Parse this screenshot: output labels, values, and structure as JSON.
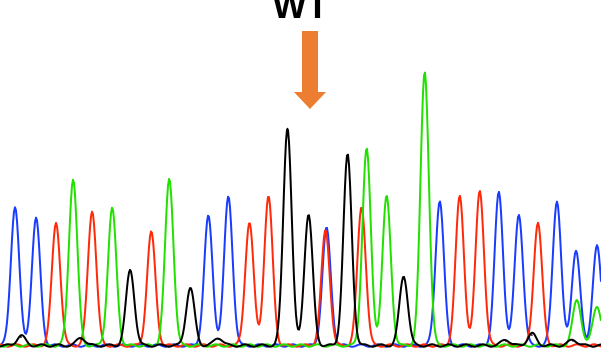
{
  "label": "WT",
  "arrow_color": "#ED7D31",
  "chart_data": {
    "type": "line",
    "title": "WT",
    "xlabel": "",
    "ylabel": "",
    "grid": false,
    "legend": "none",
    "xlim": [
      0,
      600
    ],
    "ylim": [
      0,
      280
    ],
    "series": [
      {
        "color": "#1a3cff",
        "peaks": [
          [
            15,
            140
          ],
          [
            36,
            128
          ],
          [
            208,
            130
          ],
          [
            228,
            150
          ],
          [
            326,
            118
          ],
          [
            439,
            146
          ],
          [
            498,
            154
          ],
          [
            518,
            132
          ],
          [
            556,
            146
          ],
          [
            575,
            96
          ],
          [
            596,
            100
          ]
        ]
      },
      {
        "color": "#ff2a0a",
        "peaks": [
          [
            56,
            124
          ],
          [
            92,
            136
          ],
          [
            151,
            114
          ],
          [
            249,
            124
          ],
          [
            268,
            150
          ],
          [
            325,
            116
          ],
          [
            361,
            140
          ],
          [
            459,
            150
          ],
          [
            479,
            156
          ],
          [
            537,
            124
          ]
        ]
      },
      {
        "color": "#22e000",
        "peaks": [
          [
            73,
            168
          ],
          [
            112,
            138
          ],
          [
            169,
            168
          ],
          [
            366,
            198
          ],
          [
            386,
            150
          ],
          [
            424,
            276
          ],
          [
            576,
            46
          ],
          [
            596,
            40
          ]
        ]
      },
      {
        "color": "#000000",
        "peaks": [
          [
            21,
            10
          ],
          [
            81,
            8
          ],
          [
            130,
            76
          ],
          [
            190,
            58
          ],
          [
            218,
            8
          ],
          [
            287,
            220
          ],
          [
            308,
            132
          ],
          [
            347,
            192
          ],
          [
            403,
            70
          ],
          [
            505,
            6
          ],
          [
            531,
            12
          ],
          [
            572,
            6
          ]
        ]
      }
    ]
  }
}
